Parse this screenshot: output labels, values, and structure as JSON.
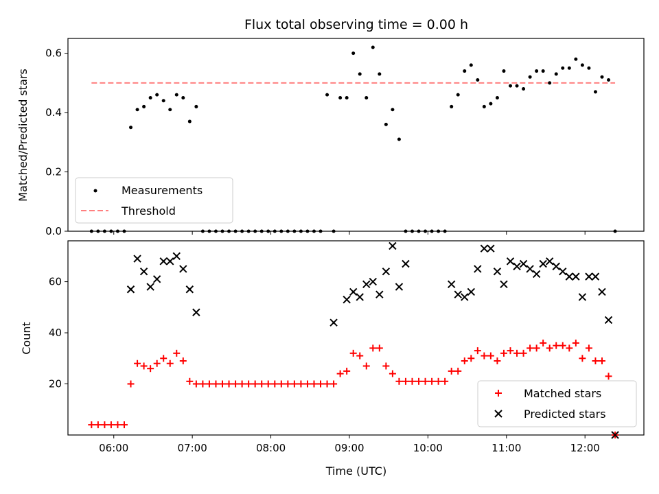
{
  "chart_data": [
    {
      "type": "scatter",
      "title": "Flux total observing time = 0.00 h",
      "xlabel": "",
      "ylabel": "Matched/Predicted stars",
      "xlim": [
        "05:25",
        "12:45"
      ],
      "ylim": [
        0,
        0.65
      ],
      "yticks": [
        0.0,
        0.2,
        0.4,
        0.6
      ],
      "ytick_labels": [
        "0.0",
        "0.2",
        "0.4",
        "0.6"
      ],
      "grid": false,
      "legend_position": "lower-left",
      "series": [
        {
          "name": "Measurements",
          "marker": "dot",
          "color": "#000000",
          "x": [
            "05:43",
            "05:48",
            "05:53",
            "05:58",
            "06:03",
            "06:08",
            "06:13",
            "06:18",
            "06:23",
            "06:28",
            "06:33",
            "06:38",
            "06:43",
            "06:48",
            "06:53",
            "06:58",
            "07:03",
            "07:08",
            "07:13",
            "07:18",
            "07:23",
            "07:28",
            "07:33",
            "07:38",
            "07:43",
            "07:48",
            "07:53",
            "07:58",
            "08:03",
            "08:08",
            "08:13",
            "08:18",
            "08:23",
            "08:28",
            "08:33",
            "08:38",
            "08:43",
            "08:48",
            "08:53",
            "08:58",
            "09:03",
            "09:08",
            "09:13",
            "09:18",
            "09:23",
            "09:28",
            "09:33",
            "09:38",
            "09:43",
            "09:48",
            "09:53",
            "09:58",
            "10:03",
            "10:08",
            "10:13",
            "10:18",
            "10:23",
            "10:28",
            "10:33",
            "10:38",
            "10:43",
            "10:48",
            "10:53",
            "10:58",
            "11:03",
            "11:08",
            "11:13",
            "11:18",
            "11:23",
            "11:28",
            "11:33",
            "11:38",
            "11:43",
            "11:48",
            "11:53",
            "11:58",
            "12:03",
            "12:08",
            "12:13",
            "12:18",
            "12:23"
          ],
          "y": [
            0,
            0,
            0,
            0,
            0,
            0,
            0.35,
            0.41,
            0.42,
            0.45,
            0.46,
            0.44,
            0.41,
            0.46,
            0.45,
            0.37,
            0.42,
            0,
            0,
            0,
            0,
            0,
            0,
            0,
            0,
            0,
            0,
            0,
            0,
            0,
            0,
            0,
            0,
            0,
            0,
            0,
            0.46,
            0,
            0.45,
            0.45,
            0.6,
            0.53,
            0.45,
            0.62,
            0.53,
            0.36,
            0.41,
            0.31,
            0,
            0,
            0,
            0,
            0,
            0,
            0,
            0.42,
            0.46,
            0.54,
            0.56,
            0.51,
            0.42,
            0.43,
            0.45,
            0.54,
            0.49,
            0.49,
            0.48,
            0.52,
            0.54,
            0.54,
            0.5,
            0.53,
            0.55,
            0.55,
            0.58,
            0.56,
            0.55,
            0.47,
            0.52,
            0.51,
            0
          ]
        },
        {
          "name": "Threshold",
          "marker": "dashed-line",
          "color": "#ff7f7f",
          "x": [
            "05:43",
            "12:23"
          ],
          "y": [
            0.5,
            0.5
          ]
        }
      ]
    },
    {
      "type": "scatter",
      "title": "",
      "xlabel": "Time (UTC)",
      "ylabel": "Count",
      "xlim": [
        "05:25",
        "12:45"
      ],
      "ylim": [
        0,
        76
      ],
      "yticks": [
        20,
        40,
        60
      ],
      "ytick_labels": [
        "20",
        "40",
        "60"
      ],
      "xticks": [
        "06:00",
        "07:00",
        "08:00",
        "09:00",
        "10:00",
        "11:00",
        "12:00"
      ],
      "grid": false,
      "legend_position": "lower-right",
      "series": [
        {
          "name": "Matched stars",
          "marker": "plus",
          "color": "#ff0000",
          "x": [
            "05:43",
            "05:48",
            "05:53",
            "05:58",
            "06:03",
            "06:08",
            "06:13",
            "06:18",
            "06:23",
            "06:28",
            "06:33",
            "06:38",
            "06:43",
            "06:48",
            "06:53",
            "06:58",
            "07:03",
            "07:08",
            "07:13",
            "07:18",
            "07:23",
            "07:28",
            "07:33",
            "07:38",
            "07:43",
            "07:48",
            "07:53",
            "07:58",
            "08:03",
            "08:08",
            "08:13",
            "08:18",
            "08:23",
            "08:28",
            "08:33",
            "08:38",
            "08:43",
            "08:48",
            "08:53",
            "08:58",
            "09:03",
            "09:08",
            "09:13",
            "09:18",
            "09:23",
            "09:28",
            "09:33",
            "09:38",
            "09:43",
            "09:48",
            "09:53",
            "09:58",
            "10:03",
            "10:08",
            "10:13",
            "10:18",
            "10:23",
            "10:28",
            "10:33",
            "10:38",
            "10:43",
            "10:48",
            "10:53",
            "10:58",
            "11:03",
            "11:08",
            "11:13",
            "11:18",
            "11:23",
            "11:28",
            "11:33",
            "11:38",
            "11:43",
            "11:48",
            "11:53",
            "11:58",
            "12:03",
            "12:08",
            "12:13",
            "12:18",
            "12:23"
          ],
          "y": [
            4,
            4,
            4,
            4,
            4,
            4,
            20,
            28,
            27,
            26,
            28,
            30,
            28,
            32,
            29,
            21,
            20,
            20,
            20,
            20,
            20,
            20,
            20,
            20,
            20,
            20,
            20,
            20,
            20,
            20,
            20,
            20,
            20,
            20,
            20,
            20,
            20,
            20,
            24,
            25,
            32,
            31,
            27,
            34,
            34,
            27,
            24,
            21,
            21,
            21,
            21,
            21,
            21,
            21,
            21,
            25,
            25,
            29,
            30,
            33,
            31,
            31,
            29,
            32,
            33,
            32,
            32,
            34,
            34,
            36,
            34,
            35,
            35,
            34,
            36,
            30,
            34,
            29,
            29,
            23,
            0
          ]
        },
        {
          "name": "Predicted stars",
          "marker": "x",
          "color": "#000000",
          "x": [
            "06:13",
            "06:18",
            "06:23",
            "06:28",
            "06:33",
            "06:38",
            "06:43",
            "06:48",
            "06:53",
            "06:58",
            "07:03",
            "08:48",
            "08:58",
            "09:03",
            "09:08",
            "09:13",
            "09:18",
            "09:23",
            "09:28",
            "09:33",
            "09:38",
            "09:43",
            "10:18",
            "10:23",
            "10:28",
            "10:33",
            "10:38",
            "10:43",
            "10:48",
            "10:53",
            "10:58",
            "11:03",
            "11:08",
            "11:13",
            "11:18",
            "11:23",
            "11:28",
            "11:33",
            "11:38",
            "11:43",
            "11:48",
            "11:53",
            "11:58",
            "12:03",
            "12:08",
            "12:13",
            "12:18",
            "12:23"
          ],
          "y": [
            57,
            69,
            64,
            58,
            61,
            68,
            68,
            70,
            65,
            57,
            48,
            44,
            53,
            56,
            54,
            59,
            60,
            55,
            64,
            74,
            58,
            67,
            59,
            55,
            54,
            56,
            65,
            73,
            73,
            64,
            59,
            68,
            66,
            67,
            65,
            63,
            67,
            68,
            66,
            64,
            62,
            62,
            54,
            62,
            62,
            56,
            45,
            0
          ]
        }
      ]
    }
  ],
  "legend_top": [
    "Measurements",
    "Threshold"
  ],
  "legend_bottom": [
    "Matched stars",
    "Predicted stars"
  ]
}
